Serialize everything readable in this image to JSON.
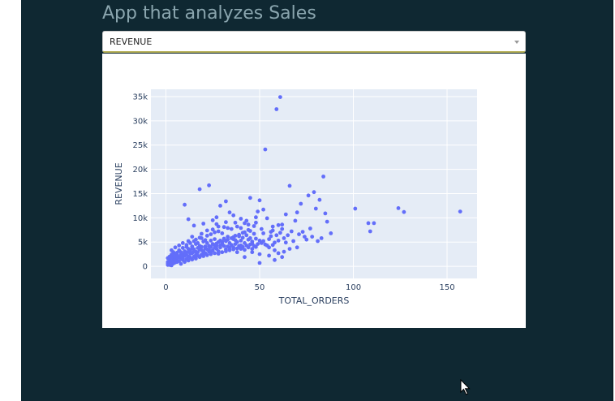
{
  "app": {
    "title": "App that analyzes Sales"
  },
  "dropdown": {
    "selected": "REVENUE"
  },
  "chart_data": {
    "type": "scatter",
    "xlabel": "TOTAL_ORDERS",
    "ylabel": "REVENUE",
    "xlim": [
      -8,
      166
    ],
    "ylim": [
      -2500,
      36500
    ],
    "x_ticks": [
      0,
      50,
      100,
      150
    ],
    "x_tick_labels": [
      "0",
      "50",
      "100",
      "150"
    ],
    "y_ticks": [
      0,
      5000,
      10000,
      15000,
      20000,
      25000,
      30000,
      35000
    ],
    "y_tick_labels": [
      "0",
      "5k",
      "10k",
      "15k",
      "20k",
      "25k",
      "30k",
      "35k"
    ],
    "grid": true,
    "marker_color": "#636efa",
    "plot_bg": "#e5ecf6",
    "points": [
      [
        61,
        34900
      ],
      [
        59,
        32400
      ],
      [
        53,
        24100
      ],
      [
        18,
        15900
      ],
      [
        23,
        16700
      ],
      [
        66,
        16600
      ],
      [
        84,
        18500
      ],
      [
        101,
        11900
      ],
      [
        124,
        12000
      ],
      [
        127,
        11200
      ],
      [
        157,
        11300
      ],
      [
        108,
        8900
      ],
      [
        111,
        8900
      ],
      [
        109,
        7200
      ],
      [
        79,
        15300
      ],
      [
        76,
        14600
      ],
      [
        82,
        13700
      ],
      [
        72,
        12900
      ],
      [
        80,
        11900
      ],
      [
        85,
        10900
      ],
      [
        86,
        9200
      ],
      [
        70,
        11100
      ],
      [
        64,
        10700
      ],
      [
        60,
        8500
      ],
      [
        62,
        8600
      ],
      [
        67,
        7200
      ],
      [
        71,
        6600
      ],
      [
        74,
        6100
      ],
      [
        78,
        6100
      ],
      [
        88,
        6800
      ],
      [
        83,
        5800
      ],
      [
        63,
        5800
      ],
      [
        58,
        4900
      ],
      [
        55,
        5600
      ],
      [
        52,
        5200
      ],
      [
        47,
        6700
      ],
      [
        44,
        7500
      ],
      [
        42,
        8900
      ],
      [
        40,
        9800
      ],
      [
        36,
        10500
      ],
      [
        34,
        11100
      ],
      [
        29,
        12500
      ],
      [
        32,
        13400
      ],
      [
        27,
        10100
      ],
      [
        25,
        9500
      ],
      [
        45,
        14100
      ],
      [
        50,
        13600
      ],
      [
        52,
        11700
      ],
      [
        57,
        8200
      ],
      [
        48,
        10100
      ],
      [
        10,
        12700
      ],
      [
        12,
        9700
      ],
      [
        15,
        8400
      ],
      [
        20,
        8800
      ],
      [
        25,
        7600
      ],
      [
        28,
        7200
      ],
      [
        30,
        6800
      ],
      [
        33,
        7900
      ],
      [
        37,
        6300
      ],
      [
        41,
        6900
      ],
      [
        46,
        4700
      ],
      [
        50,
        5300
      ],
      [
        54,
        4300
      ],
      [
        58,
        3300
      ],
      [
        60,
        2700
      ],
      [
        62,
        1900
      ],
      [
        58,
        1300
      ],
      [
        50,
        700
      ],
      [
        42,
        1900
      ],
      [
        38,
        2900
      ],
      [
        34,
        3800
      ],
      [
        30,
        4700
      ],
      [
        26,
        5600
      ],
      [
        22,
        6300
      ],
      [
        18,
        5900
      ],
      [
        14,
        6100
      ],
      [
        12,
        5200
      ],
      [
        9,
        4800
      ],
      [
        7,
        4300
      ],
      [
        5,
        3900
      ],
      [
        3,
        3300
      ],
      [
        6,
        2800
      ],
      [
        8,
        2400
      ],
      [
        10,
        3100
      ],
      [
        12,
        3600
      ],
      [
        14,
        4100
      ],
      [
        16,
        4600
      ],
      [
        18,
        4200
      ],
      [
        20,
        5100
      ],
      [
        22,
        4800
      ],
      [
        24,
        5300
      ],
      [
        26,
        4400
      ],
      [
        28,
        5000
      ],
      [
        30,
        4600
      ],
      [
        32,
        5200
      ],
      [
        34,
        4800
      ],
      [
        36,
        5600
      ],
      [
        38,
        5000
      ],
      [
        40,
        5300
      ],
      [
        42,
        4800
      ],
      [
        44,
        5500
      ],
      [
        46,
        5100
      ],
      [
        48,
        5700
      ],
      [
        40,
        4300
      ],
      [
        36,
        3900
      ],
      [
        32,
        3500
      ],
      [
        28,
        3100
      ],
      [
        24,
        2900
      ],
      [
        20,
        2600
      ],
      [
        16,
        2300
      ],
      [
        12,
        2000
      ],
      [
        8,
        1700
      ],
      [
        4,
        1400
      ],
      [
        2,
        1000
      ],
      [
        1,
        600
      ],
      [
        3,
        500
      ],
      [
        5,
        800
      ],
      [
        7,
        1100
      ],
      [
        9,
        1300
      ],
      [
        11,
        1500
      ],
      [
        13,
        1800
      ],
      [
        15,
        2000
      ],
      [
        17,
        2200
      ],
      [
        19,
        2400
      ],
      [
        21,
        2700
      ],
      [
        23,
        3000
      ],
      [
        25,
        3300
      ],
      [
        27,
        3600
      ],
      [
        29,
        3900
      ],
      [
        31,
        4200
      ],
      [
        33,
        4100
      ],
      [
        35,
        4400
      ],
      [
        37,
        4600
      ],
      [
        39,
        4200
      ],
      [
        41,
        4000
      ],
      [
        43,
        4300
      ],
      [
        45,
        4500
      ],
      [
        47,
        4200
      ],
      [
        49,
        4600
      ],
      [
        51,
        4800
      ],
      [
        53,
        4500
      ],
      [
        55,
        3900
      ],
      [
        57,
        4400
      ],
      [
        2,
        300
      ],
      [
        3,
        200
      ],
      [
        4,
        600
      ],
      [
        6,
        900
      ],
      [
        8,
        500
      ],
      [
        10,
        900
      ],
      [
        12,
        1200
      ],
      [
        14,
        1400
      ],
      [
        16,
        1600
      ],
      [
        18,
        1900
      ],
      [
        20,
        2100
      ],
      [
        22,
        2300
      ],
      [
        24,
        2500
      ],
      [
        26,
        2700
      ],
      [
        28,
        2600
      ],
      [
        30,
        2900
      ],
      [
        32,
        3100
      ],
      [
        34,
        3300
      ],
      [
        36,
        3500
      ],
      [
        38,
        3700
      ],
      [
        40,
        3600
      ],
      [
        42,
        3400
      ],
      [
        44,
        3900
      ],
      [
        46,
        3600
      ],
      [
        48,
        4000
      ],
      [
        6,
        2000
      ],
      [
        9,
        2500
      ],
      [
        11,
        2800
      ],
      [
        13,
        3200
      ],
      [
        15,
        3500
      ],
      [
        17,
        3800
      ],
      [
        19,
        4000
      ],
      [
        21,
        3700
      ],
      [
        23,
        4200
      ],
      [
        25,
        4600
      ],
      [
        27,
        4200
      ],
      [
        29,
        5300
      ],
      [
        31,
        5700
      ],
      [
        33,
        6100
      ],
      [
        35,
        5800
      ],
      [
        37,
        5400
      ],
      [
        39,
        6200
      ],
      [
        41,
        5900
      ],
      [
        43,
        6400
      ],
      [
        45,
        5800
      ],
      [
        10,
        2200
      ],
      [
        13,
        2600
      ],
      [
        16,
        3000
      ],
      [
        19,
        3300
      ],
      [
        22,
        3500
      ],
      [
        1,
        900
      ],
      [
        2,
        1500
      ],
      [
        3,
        1800
      ],
      [
        4,
        2100
      ],
      [
        5,
        1600
      ],
      [
        6,
        1300
      ],
      [
        7,
        1900
      ],
      [
        8,
        2100
      ],
      [
        9,
        1700
      ],
      [
        11,
        2300
      ],
      [
        14,
        2700
      ],
      [
        17,
        2900
      ],
      [
        20,
        3100
      ],
      [
        23,
        3400
      ],
      [
        26,
        3900
      ],
      [
        29,
        4300
      ],
      [
        15,
        3000
      ],
      [
        18,
        3500
      ],
      [
        21,
        4100
      ],
      [
        24,
        4000
      ],
      [
        27,
        4700
      ],
      [
        30,
        5100
      ],
      [
        33,
        5500
      ],
      [
        36,
        6000
      ],
      [
        39,
        6500
      ],
      [
        42,
        7000
      ],
      [
        45,
        7300
      ],
      [
        38,
        8200
      ],
      [
        32,
        9100
      ],
      [
        27,
        8700
      ],
      [
        22,
        7400
      ],
      [
        19,
        6700
      ],
      [
        16,
        5500
      ],
      [
        13,
        4800
      ],
      [
        11,
        4400
      ],
      [
        9,
        3800
      ],
      [
        7,
        3300
      ],
      [
        5,
        2600
      ],
      [
        4,
        2900
      ],
      [
        3,
        2400
      ],
      [
        2,
        2000
      ],
      [
        1,
        1700
      ],
      [
        35,
        7700
      ],
      [
        40,
        7900
      ],
      [
        44,
        8600
      ],
      [
        48,
        9000
      ],
      [
        52,
        6800
      ],
      [
        56,
        6200
      ],
      [
        60,
        5300
      ],
      [
        64,
        4900
      ],
      [
        68,
        5200
      ],
      [
        70,
        3900
      ],
      [
        66,
        3600
      ],
      [
        63,
        3000
      ],
      [
        55,
        2200
      ],
      [
        50,
        2500
      ],
      [
        46,
        2900
      ],
      [
        57,
        7400
      ],
      [
        61,
        6900
      ],
      [
        65,
        6400
      ],
      [
        73,
        7100
      ],
      [
        77,
        7800
      ],
      [
        81,
        5200
      ],
      [
        69,
        9400
      ],
      [
        54,
        9900
      ],
      [
        49,
        11300
      ],
      [
        43,
        9400
      ],
      [
        37,
        9000
      ],
      [
        31,
        8100
      ],
      [
        26,
        7000
      ],
      [
        21,
        5400
      ],
      [
        17,
        4800
      ],
      [
        14,
        3700
      ],
      [
        12,
        3000
      ],
      [
        10,
        2600
      ],
      [
        8,
        2900
      ],
      [
        6,
        2300
      ],
      [
        5,
        1200
      ],
      [
        4,
        800
      ],
      [
        3,
        1000
      ],
      [
        2,
        700
      ],
      [
        1,
        300
      ],
      [
        28,
        8200
      ],
      [
        24,
        6600
      ],
      [
        19,
        5800
      ],
      [
        15,
        5200
      ],
      [
        11,
        4000
      ],
      [
        47,
        8300
      ],
      [
        51,
        7700
      ],
      [
        56,
        7100
      ],
      [
        59,
        6400
      ],
      [
        62,
        7700
      ],
      [
        75,
        5500
      ]
    ]
  }
}
